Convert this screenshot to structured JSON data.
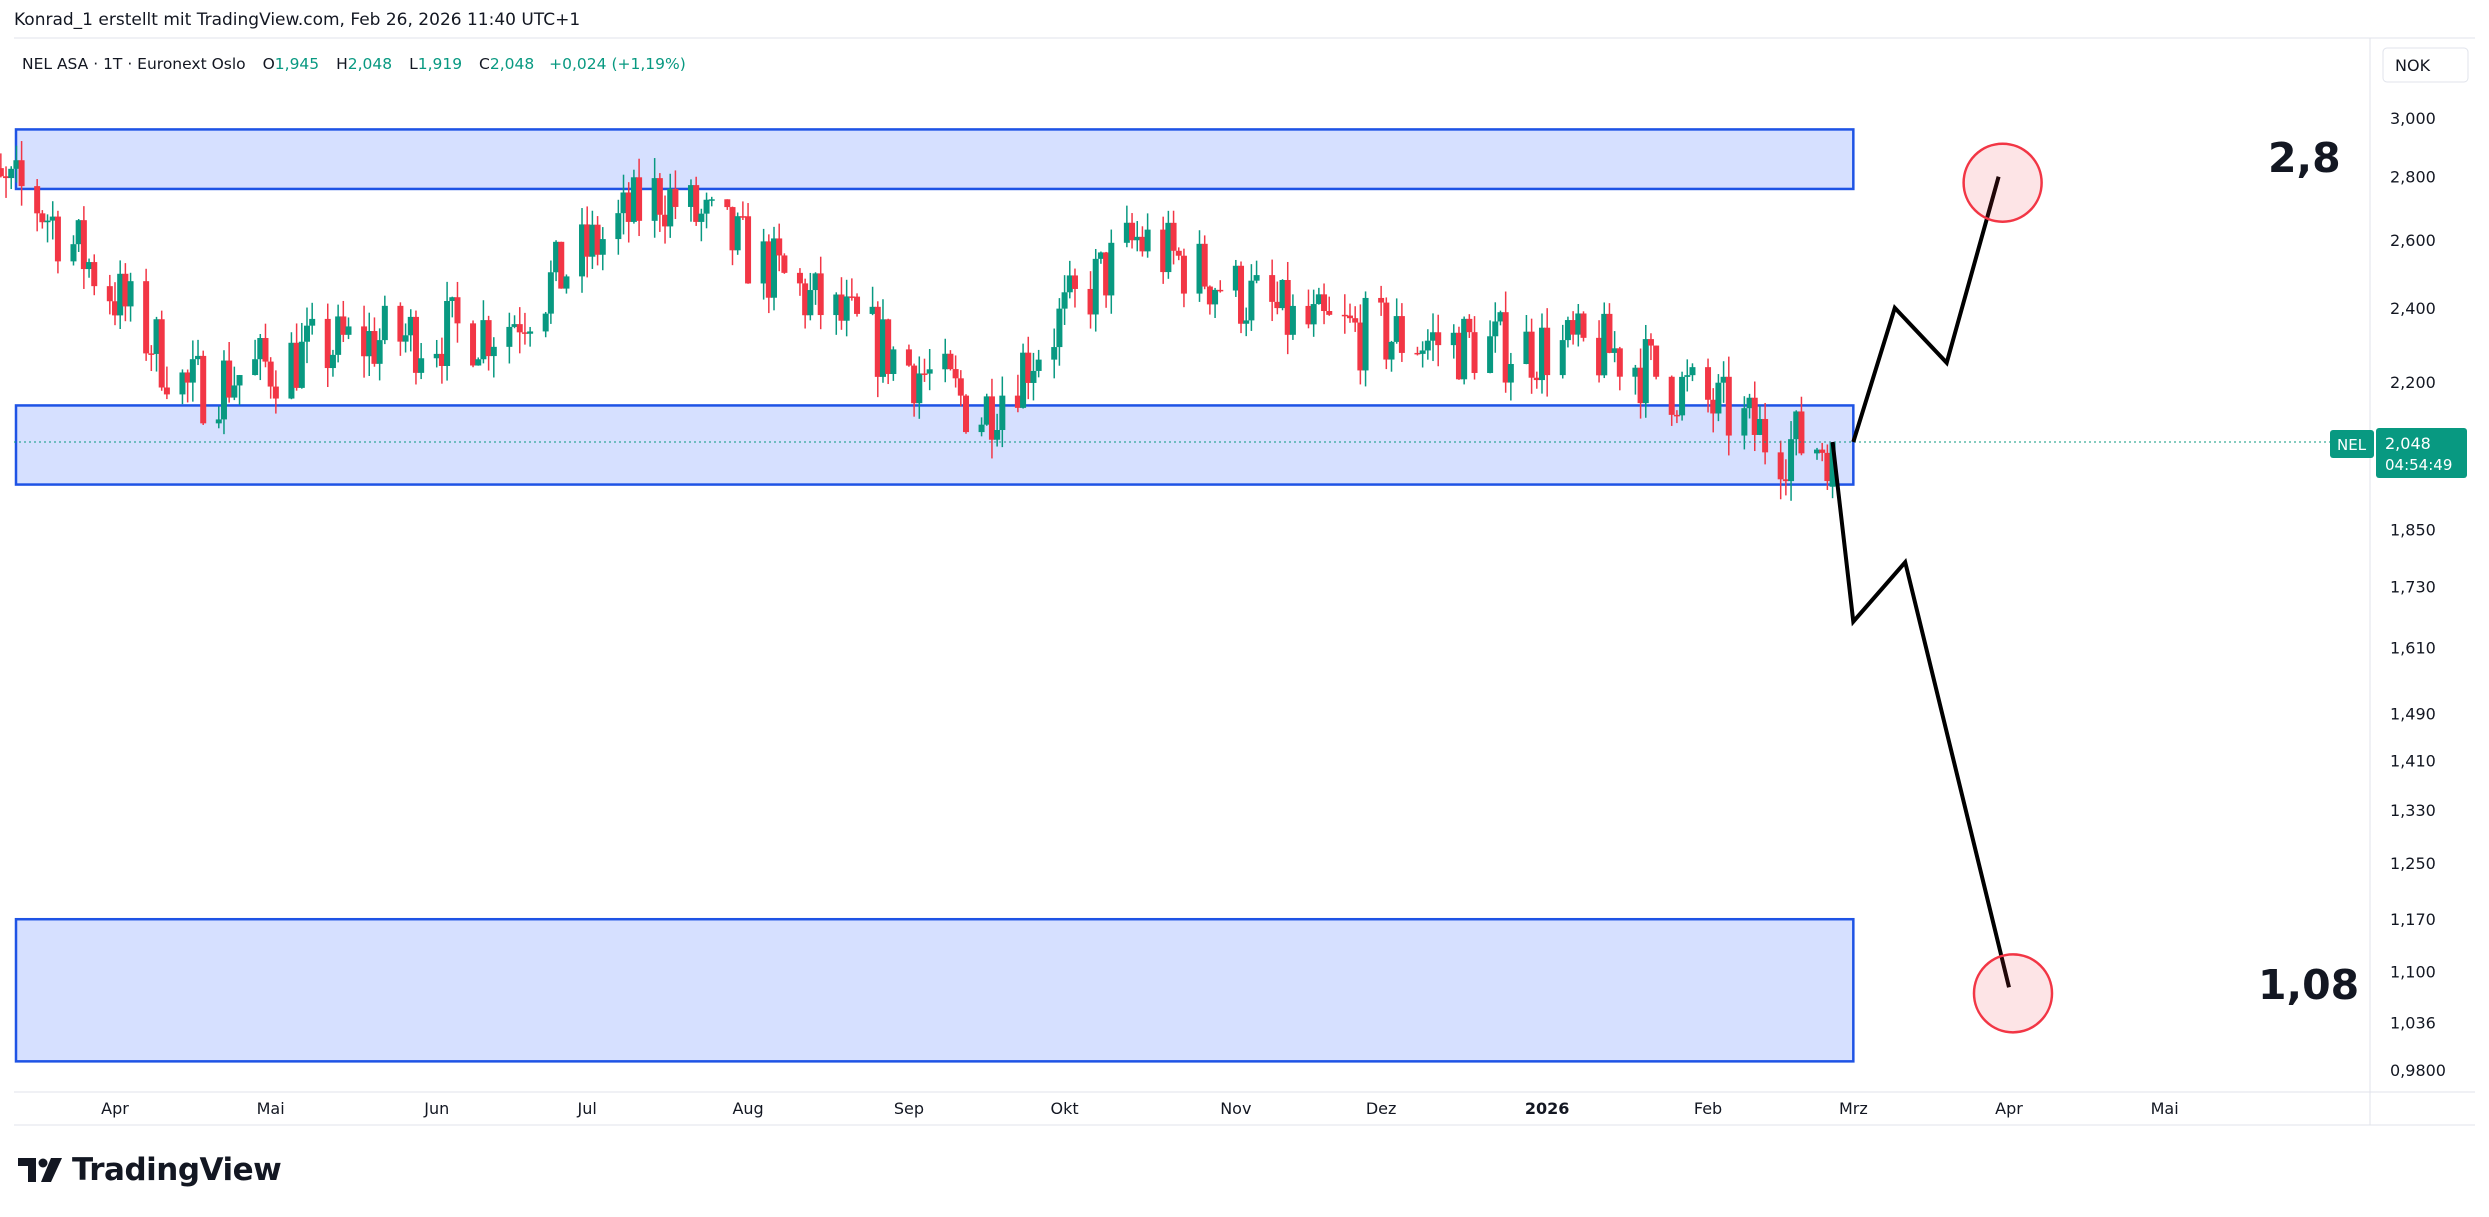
{
  "header": {
    "attribution": "Konrad_1 erstellt mit TradingView.com, Feb 26, 2026 11:40 UTC+1"
  },
  "legend": {
    "symbol": "NEL ASA · 1T · Euronext Oslo",
    "o_label": "O",
    "o_value": "1,945",
    "h_label": "H",
    "h_value": "2,048",
    "l_label": "L",
    "l_value": "1,919",
    "c_label": "C",
    "c_value": "2,048",
    "change": "+0,024 (+1,19%)"
  },
  "price_axis": {
    "currency": "NOK",
    "ticks": [
      "3,000",
      "2,800",
      "2,600",
      "2,400",
      "2,200",
      "1,850",
      "1,730",
      "1,610",
      "1,490",
      "1,410",
      "1,330",
      "1,250",
      "1,170",
      "1,100",
      "1,036",
      "0,9800"
    ]
  },
  "price_tag": {
    "label": "NEL",
    "value": "2,048",
    "countdown": "04:54:49"
  },
  "annotations": {
    "target_up": "2,8",
    "target_down": "1,08"
  },
  "footer": {
    "logo_text": "TradingView"
  },
  "colors": {
    "up": "#089981",
    "down": "#f23645",
    "zone_fill": "#d6e0ff",
    "zone_stroke": "#1e53e5",
    "target_circle": "#f23645"
  },
  "chart_data": {
    "type": "candlestick",
    "title": "NEL ASA · 1T · Euronext Oslo",
    "y_scale": "log",
    "ylim": [
      0.95,
      3.1
    ],
    "x_labels": [
      {
        "label": "Apr",
        "date": "2025-04-01",
        "bold": false
      },
      {
        "label": "Mai",
        "date": "2025-05-01",
        "bold": false
      },
      {
        "label": "Jun",
        "date": "2025-06-02",
        "bold": false
      },
      {
        "label": "Jul",
        "date": "2025-07-01",
        "bold": false
      },
      {
        "label": "Aug",
        "date": "2025-08-01",
        "bold": false
      },
      {
        "label": "Sep",
        "date": "2025-09-01",
        "bold": false
      },
      {
        "label": "Okt",
        "date": "2025-10-01",
        "bold": false
      },
      {
        "label": "Nov",
        "date": "2025-11-03",
        "bold": false
      },
      {
        "label": "Dez",
        "date": "2025-12-01",
        "bold": false
      },
      {
        "label": "2026",
        "date": "2026-01-02",
        "bold": true
      },
      {
        "label": "Feb",
        "date": "2026-02-02",
        "bold": false
      },
      {
        "label": "Mrz",
        "date": "2026-03-02",
        "bold": false
      },
      {
        "label": "Apr",
        "date": "2026-04-01",
        "bold": false
      },
      {
        "label": "Mai",
        "date": "2026-05-01",
        "bold": false
      }
    ],
    "monthly_closes": [
      {
        "month": "2025-03",
        "close": 2.75
      },
      {
        "month": "2025-04",
        "close": 2.18
      },
      {
        "month": "2025-05",
        "close": 2.3
      },
      {
        "month": "2025-06",
        "close": 2.35
      },
      {
        "month": "2025-07",
        "close": 2.75
      },
      {
        "month": "2025-08",
        "close": 2.4
      },
      {
        "month": "2025-09",
        "close": 2.12
      },
      {
        "month": "2025-10",
        "close": 2.6
      },
      {
        "month": "2025-11",
        "close": 2.35
      },
      {
        "month": "2025-12",
        "close": 2.3
      },
      {
        "month": "2026-01",
        "close": 2.28
      },
      {
        "month": "2026-02",
        "close": 2.048
      }
    ],
    "last_candle": {
      "date": "2026-02-26",
      "open": 1.945,
      "high": 2.048,
      "low": 1.919,
      "close": 2.048
    },
    "zones": [
      {
        "name": "resistance-zone",
        "from": "2025-03-03",
        "to": "2026-03-02",
        "low": 2.76,
        "high": 2.96
      },
      {
        "name": "support-zone",
        "from": "2025-03-03",
        "to": "2026-03-02",
        "low": 1.95,
        "high": 2.14
      },
      {
        "name": "target-zone",
        "from": "2025-03-03",
        "to": "2026-03-02",
        "low": 0.99,
        "high": 1.17
      }
    ],
    "projection_up": [
      {
        "date": "2026-03-02",
        "price": 2.05
      },
      {
        "date": "2026-03-10",
        "price": 2.4
      },
      {
        "date": "2026-03-20",
        "price": 2.25
      },
      {
        "date": "2026-03-30",
        "price": 2.8
      }
    ],
    "projection_down": [
      {
        "date": "2026-02-26",
        "price": 2.05
      },
      {
        "date": "2026-03-02",
        "price": 1.66
      },
      {
        "date": "2026-03-12",
        "price": 1.78
      },
      {
        "date": "2026-04-01",
        "price": 1.08
      }
    ],
    "targets": [
      {
        "date": "2026-03-30",
        "price": 2.8,
        "label": "2,8"
      },
      {
        "date": "2026-04-01",
        "price": 1.08,
        "label": "1,08"
      }
    ]
  }
}
